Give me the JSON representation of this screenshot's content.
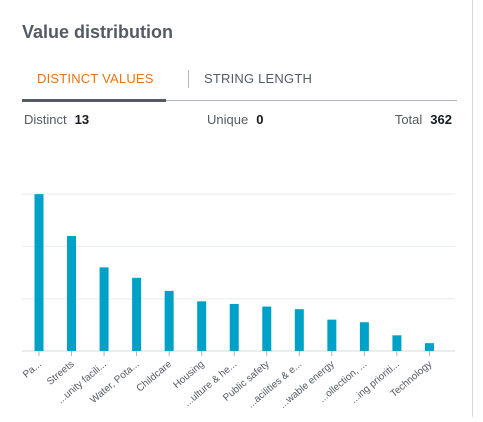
{
  "panel": {
    "title": "Value distribution"
  },
  "tabs": [
    {
      "label": "DISTINCT VALUES",
      "active": true
    },
    {
      "label": "STRING LENGTH",
      "active": false
    }
  ],
  "stats": {
    "distinct_label": "Distinct",
    "distinct_value": "13",
    "unique_label": "Unique",
    "unique_value": "0",
    "total_label": "Total",
    "total_value": "362"
  },
  "colors": {
    "accent": "#ec7211",
    "bar": "#00a1c9",
    "text": "#545b64"
  },
  "chart_data": {
    "type": "bar",
    "categories": [
      "Pa...",
      "Streets",
      "...unity facili...",
      "Water, Pota...",
      "Childcare",
      "Housing",
      "...ulture & he...",
      "Public safety",
      "...acilities & e...",
      "...wable energy",
      "...ollection, ...",
      "...ing prioriti...",
      "Technology"
    ],
    "values": [
      60,
      44,
      32,
      28,
      23,
      19,
      18,
      17,
      16,
      12,
      11,
      6,
      3
    ],
    "ylim": [
      0,
      70
    ],
    "grid": true,
    "legend": "none"
  }
}
